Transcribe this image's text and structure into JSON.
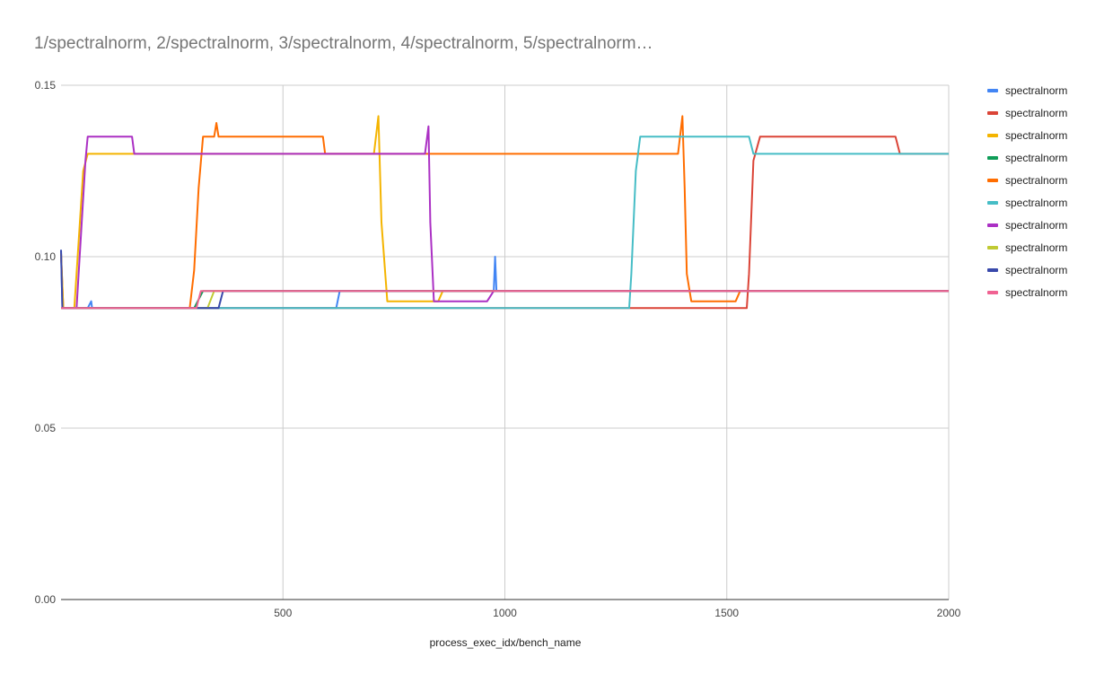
{
  "chart_data": {
    "type": "line",
    "title": "1/spectralnorm, 2/spectralnorm, 3/spectralnorm, 4/spectralnorm, 5/spectralnorm…",
    "xlabel": "process_exec_idx/bench_name",
    "ylabel": "",
    "xlim": [
      0,
      2000
    ],
    "ylim": [
      0,
      0.15
    ],
    "x_ticks": [
      "500",
      "1000",
      "1500",
      "2000"
    ],
    "y_ticks": [
      "0.00",
      "0.05",
      "0.10",
      "0.15"
    ],
    "grid": true,
    "legend_position": "right",
    "series": [
      {
        "name": "spectralnorm",
        "color": "#4285f4",
        "points": [
          [
            0,
            0.102
          ],
          [
            3,
            0.085
          ],
          [
            60,
            0.085
          ],
          [
            68,
            0.087
          ],
          [
            70,
            0.085
          ],
          [
            620,
            0.085
          ],
          [
            628,
            0.09
          ],
          [
            975,
            0.09
          ],
          [
            978,
            0.1
          ],
          [
            981,
            0.09
          ],
          [
            2000,
            0.09
          ]
        ]
      },
      {
        "name": "spectralnorm",
        "color": "#db4437",
        "points": [
          [
            0,
            0.101
          ],
          [
            5,
            0.085
          ],
          [
            1545,
            0.085
          ],
          [
            1550,
            0.095
          ],
          [
            1560,
            0.128
          ],
          [
            1575,
            0.135
          ],
          [
            1880,
            0.135
          ],
          [
            1890,
            0.13
          ],
          [
            2000,
            0.13
          ]
        ]
      },
      {
        "name": "spectralnorm",
        "color": "#f4b400",
        "points": [
          [
            0,
            0.101
          ],
          [
            5,
            0.085
          ],
          [
            30,
            0.085
          ],
          [
            50,
            0.125
          ],
          [
            60,
            0.13
          ],
          [
            705,
            0.13
          ],
          [
            715,
            0.141
          ],
          [
            722,
            0.11
          ],
          [
            735,
            0.087
          ],
          [
            850,
            0.087
          ],
          [
            860,
            0.09
          ],
          [
            2000,
            0.09
          ]
        ]
      },
      {
        "name": "spectralnorm",
        "color": "#0f9d58",
        "points": [
          [
            0,
            0.085
          ],
          [
            300,
            0.085
          ],
          [
            320,
            0.09
          ],
          [
            2000,
            0.09
          ]
        ]
      },
      {
        "name": "spectralnorm",
        "color": "#ff6d00",
        "points": [
          [
            0,
            0.085
          ],
          [
            290,
            0.085
          ],
          [
            300,
            0.096
          ],
          [
            310,
            0.12
          ],
          [
            320,
            0.135
          ],
          [
            345,
            0.135
          ],
          [
            350,
            0.139
          ],
          [
            355,
            0.135
          ],
          [
            590,
            0.135
          ],
          [
            595,
            0.13
          ],
          [
            1390,
            0.13
          ],
          [
            1400,
            0.141
          ],
          [
            1405,
            0.12
          ],
          [
            1410,
            0.095
          ],
          [
            1420,
            0.087
          ],
          [
            1520,
            0.087
          ],
          [
            1530,
            0.09
          ],
          [
            2000,
            0.09
          ]
        ]
      },
      {
        "name": "spectralnorm",
        "color": "#46bdc6",
        "points": [
          [
            0,
            0.085
          ],
          [
            1280,
            0.085
          ],
          [
            1285,
            0.095
          ],
          [
            1295,
            0.125
          ],
          [
            1305,
            0.135
          ],
          [
            1550,
            0.135
          ],
          [
            1560,
            0.13
          ],
          [
            2000,
            0.13
          ]
        ]
      },
      {
        "name": "spectralnorm",
        "color": "#ab30c4",
        "points": [
          [
            0,
            0.085
          ],
          [
            35,
            0.085
          ],
          [
            55,
            0.128
          ],
          [
            60,
            0.135
          ],
          [
            160,
            0.135
          ],
          [
            165,
            0.13
          ],
          [
            820,
            0.13
          ],
          [
            828,
            0.138
          ],
          [
            832,
            0.11
          ],
          [
            840,
            0.087
          ],
          [
            960,
            0.087
          ],
          [
            975,
            0.09
          ],
          [
            2000,
            0.09
          ]
        ]
      },
      {
        "name": "spectralnorm",
        "color": "#c0ca33",
        "points": [
          [
            0,
            0.085
          ],
          [
            330,
            0.085
          ],
          [
            345,
            0.09
          ],
          [
            2000,
            0.09
          ]
        ]
      },
      {
        "name": "spectralnorm",
        "color": "#3949ab",
        "points": [
          [
            0,
            0.102
          ],
          [
            3,
            0.085
          ],
          [
            355,
            0.085
          ],
          [
            365,
            0.09
          ],
          [
            2000,
            0.09
          ]
        ]
      },
      {
        "name": "spectralnorm",
        "color": "#f06292",
        "points": [
          [
            0,
            0.085
          ],
          [
            305,
            0.085
          ],
          [
            315,
            0.09
          ],
          [
            2000,
            0.09
          ]
        ]
      }
    ]
  }
}
